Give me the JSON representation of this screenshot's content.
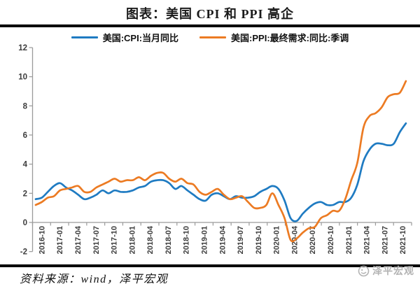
{
  "title": "图表：美国 CPI 和 PPI 高企",
  "source": "资料来源：wind，泽平宏观",
  "watermark": "泽平宏观",
  "chart_data": {
    "type": "line",
    "title": "图表：美国 CPI 和 PPI 高企",
    "x_start": "2016-10",
    "x_end": "2021-11",
    "x_frequency": "monthly",
    "x_tick_labels": [
      "2016-10",
      "2017-01",
      "2017-04",
      "2017-07",
      "2017-10",
      "2018-01",
      "2018-04",
      "2018-07",
      "2018-10",
      "2019-01",
      "2019-04",
      "2019-07",
      "2019-10",
      "2020-01",
      "2020-04",
      "2020-07",
      "2020-10",
      "2021-01",
      "2021-04",
      "2021-07",
      "2021-10"
    ],
    "y_ticks": [
      -2,
      0,
      2,
      4,
      6,
      8,
      10,
      12
    ],
    "ylim": [
      -2,
      12
    ],
    "grid": false,
    "legend_position": "top",
    "axis_color": "#9a9a9a",
    "series": [
      {
        "name": "美国:CPI:当月同比",
        "color": "#1f7bc2",
        "values": [
          1.6,
          1.7,
          2.1,
          2.5,
          2.7,
          2.4,
          2.2,
          1.9,
          1.6,
          1.7,
          1.9,
          2.2,
          2.0,
          2.2,
          2.1,
          2.1,
          2.2,
          2.4,
          2.5,
          2.8,
          2.9,
          2.9,
          2.7,
          2.3,
          2.5,
          2.2,
          1.9,
          1.6,
          1.5,
          1.9,
          2.0,
          1.8,
          1.6,
          1.8,
          1.7,
          1.7,
          1.8,
          2.1,
          2.3,
          2.5,
          2.3,
          1.5,
          0.3,
          0.1,
          0.6,
          1.0,
          1.3,
          1.4,
          1.2,
          1.2,
          1.4,
          1.4,
          1.7,
          2.6,
          4.2,
          5.0,
          5.4,
          5.4,
          5.3,
          5.4,
          6.2,
          6.8
        ]
      },
      {
        "name": "美国:PPI:最终需求:同比:季调",
        "color": "#ec7b23",
        "values": [
          1.2,
          1.4,
          1.7,
          1.8,
          2.2,
          2.3,
          2.4,
          2.5,
          2.1,
          2.1,
          2.4,
          2.6,
          2.8,
          3.0,
          2.8,
          2.9,
          2.9,
          3.1,
          2.9,
          3.2,
          3.4,
          3.4,
          3.0,
          2.8,
          3.0,
          2.7,
          2.6,
          2.1,
          1.9,
          2.1,
          2.3,
          1.9,
          1.6,
          1.7,
          1.8,
          1.4,
          1.0,
          1.0,
          1.2,
          2.0,
          1.2,
          0.3,
          -1.2,
          -1.1,
          -0.7,
          -0.4,
          -0.3,
          0.3,
          0.5,
          0.8,
          0.8,
          1.6,
          2.9,
          4.1,
          6.5,
          7.3,
          7.5,
          7.9,
          8.6,
          8.8,
          8.9,
          9.7
        ]
      }
    ]
  }
}
